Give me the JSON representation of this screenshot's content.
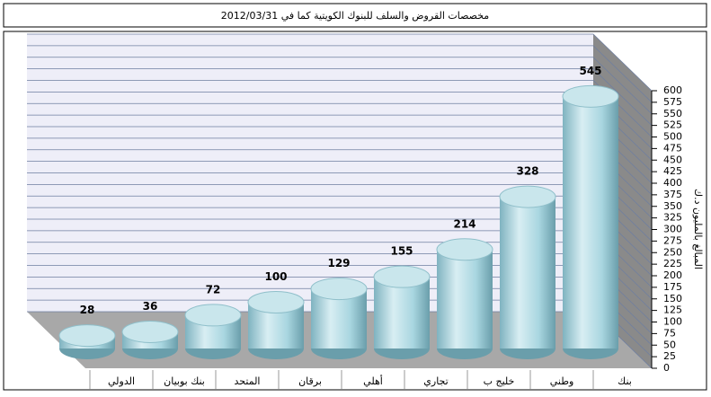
{
  "chart_data": {
    "type": "bar3d",
    "title": "مخصصات القروض والسلف للبنوك الكويتية كما في 2012/03/31",
    "y_axis_label": "المبالغ بالمليون د.ك",
    "categories": [
      "الدولي",
      "بنك بوبيان",
      "المتحد",
      "برقان",
      "أهلي",
      "تجاري",
      "خليج ب",
      "وطني",
      "بنك"
    ],
    "values": [
      28,
      36,
      72,
      100,
      129,
      155,
      214,
      328,
      545
    ],
    "color": "#a9d6e0",
    "ylim": [
      0,
      600
    ],
    "yticks": [
      0,
      25,
      50,
      75,
      100,
      125,
      150,
      175,
      200,
      225,
      250,
      275,
      300,
      325,
      350,
      375,
      400,
      425,
      450,
      475,
      500,
      525,
      550,
      575,
      600
    ],
    "grid": true
  }
}
